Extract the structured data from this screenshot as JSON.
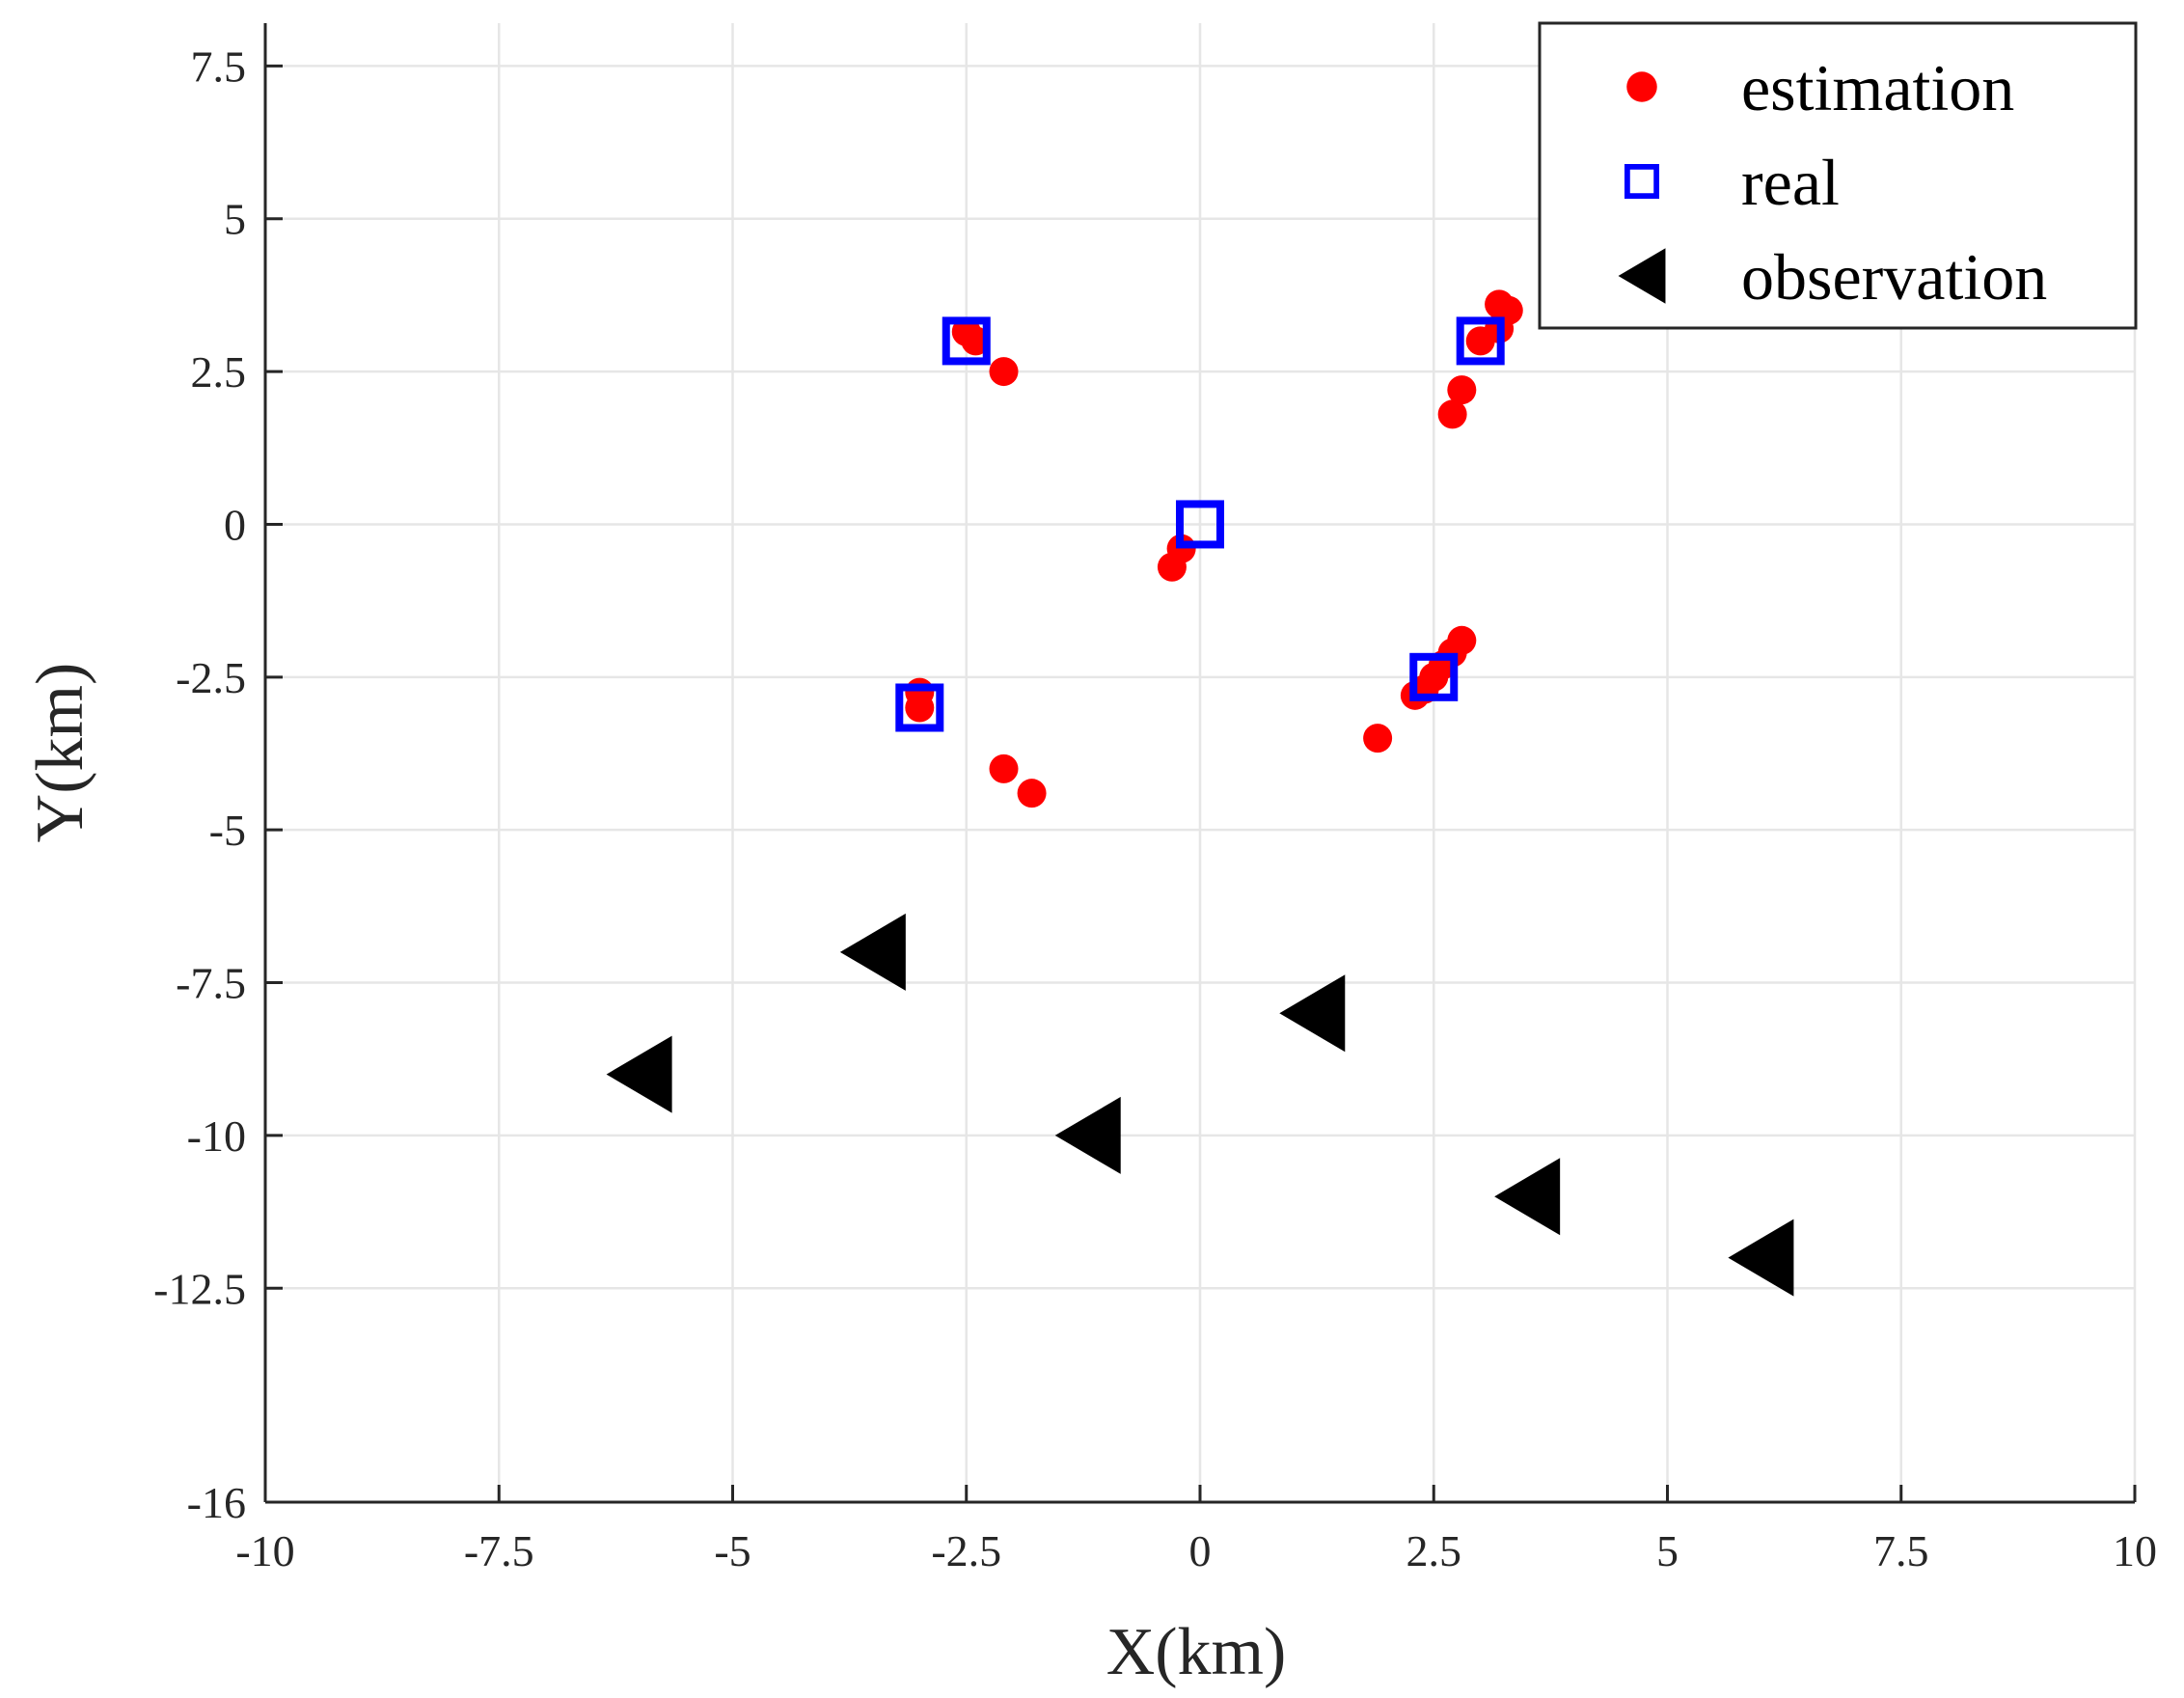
{
  "chart_data": {
    "type": "scatter",
    "title": "",
    "xlabel": "X(km)",
    "ylabel": "Y(km)",
    "xlim": [
      -10,
      10
    ],
    "ylim": [
      -16,
      7.5
    ],
    "grid": true,
    "legend_position": "top-right",
    "x_ticks": [
      -10,
      -7.5,
      -5,
      -2.5,
      0,
      2.5,
      5,
      7.5,
      10
    ],
    "x_tick_labels": [
      "-10",
      "-7.5",
      "-5",
      "-2.5",
      "0",
      "2.5",
      "5",
      "7.5",
      "10"
    ],
    "y_ticks": [
      7.5,
      5,
      2.5,
      0,
      -2.5,
      -5,
      -7.5,
      -10,
      -12.5,
      -16
    ],
    "y_tick_labels": [
      "7.5",
      "5",
      "2.5",
      "0",
      "-2.5",
      "-5",
      "-7.5",
      "-10",
      "-12.5",
      "-16"
    ],
    "series": [
      {
        "name": "estimation",
        "marker": "circle",
        "color": "#ff0000",
        "points": [
          {
            "x": -2.5,
            "y": 3.15
          },
          {
            "x": -2.4,
            "y": 3.0
          },
          {
            "x": -2.1,
            "y": 2.5
          },
          {
            "x": -0.3,
            "y": -0.7
          },
          {
            "x": -0.2,
            "y": -0.4
          },
          {
            "x": -3.0,
            "y": -2.75
          },
          {
            "x": -3.0,
            "y": -3.0
          },
          {
            "x": -2.1,
            "y": -4.0
          },
          {
            "x": -1.8,
            "y": -4.4
          },
          {
            "x": 3.2,
            "y": 3.6
          },
          {
            "x": 3.3,
            "y": 3.5
          },
          {
            "x": 3.2,
            "y": 3.2
          },
          {
            "x": 3.0,
            "y": 3.0
          },
          {
            "x": 2.8,
            "y": 2.2
          },
          {
            "x": 2.7,
            "y": 1.8
          },
          {
            "x": 2.8,
            "y": -1.9
          },
          {
            "x": 2.7,
            "y": -2.1
          },
          {
            "x": 2.6,
            "y": -2.3
          },
          {
            "x": 2.5,
            "y": -2.5
          },
          {
            "x": 2.4,
            "y": -2.7
          },
          {
            "x": 2.3,
            "y": -2.8
          },
          {
            "x": 1.9,
            "y": -3.5
          }
        ]
      },
      {
        "name": "real",
        "marker": "square",
        "color": "#0000ff",
        "points": [
          {
            "x": -2.5,
            "y": 3.0
          },
          {
            "x": 3.0,
            "y": 3.0
          },
          {
            "x": 0.0,
            "y": 0.0
          },
          {
            "x": -3.0,
            "y": -3.0
          },
          {
            "x": 2.5,
            "y": -2.5
          }
        ]
      },
      {
        "name": "observation",
        "marker": "triangle-left",
        "color": "#000000",
        "points": [
          {
            "x": -3.5,
            "y": -7.0
          },
          {
            "x": -6.0,
            "y": -9.0
          },
          {
            "x": -1.2,
            "y": -10.0
          },
          {
            "x": 1.2,
            "y": -8.0
          },
          {
            "x": 3.5,
            "y": -11.0
          },
          {
            "x": 6.0,
            "y": -12.0
          }
        ]
      }
    ]
  }
}
